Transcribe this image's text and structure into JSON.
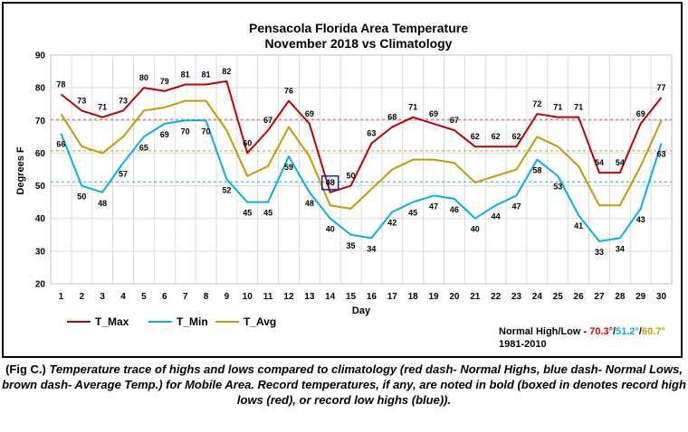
{
  "chart_data": {
    "type": "line",
    "title": "Pensacola Florida Area Temperature",
    "subtitle": "November 2018 vs Climatology",
    "xlabel": "Day",
    "ylabel": "Degrees F",
    "ylim": [
      20,
      90
    ],
    "yticks": [
      20,
      30,
      40,
      50,
      60,
      70,
      80,
      90
    ],
    "grid": true,
    "legend_position": "bottom-left",
    "x": [
      1,
      2,
      3,
      4,
      5,
      6,
      7,
      8,
      9,
      10,
      11,
      12,
      13,
      14,
      15,
      16,
      17,
      18,
      19,
      20,
      21,
      22,
      23,
      24,
      25,
      26,
      27,
      28,
      29,
      30
    ],
    "series": [
      {
        "name": "T_Max",
        "color": "#c00000",
        "values": [
          78,
          73,
          71,
          73,
          80,
          79,
          81,
          81,
          82,
          60,
          67,
          76,
          69,
          48,
          50,
          63,
          68,
          71,
          69,
          67,
          62,
          62,
          62,
          72,
          71,
          71,
          54,
          54,
          69,
          77
        ],
        "labels": [
          "78",
          "73",
          "71",
          "73",
          "80",
          "79",
          "81",
          "81",
          "82",
          "60",
          "67",
          "76",
          "69",
          "48",
          "50",
          "63",
          "68",
          "71",
          "69",
          "67",
          "62",
          "62",
          "62",
          "72",
          "71",
          "71",
          "54",
          "54",
          "69",
          "77"
        ]
      },
      {
        "name": "T_Min",
        "color": "#00b0f0",
        "values": [
          66,
          50,
          48,
          57,
          65,
          69,
          70,
          70,
          52,
          45,
          45,
          59,
          48,
          40,
          35,
          34,
          42,
          45,
          47,
          46,
          40,
          44,
          47,
          58,
          53,
          41,
          33,
          34,
          43,
          63
        ],
        "labels": [
          "66",
          "50",
          "48",
          "57",
          "65",
          "69",
          "70",
          "70",
          "52",
          "45",
          "45",
          "59",
          "48",
          "40",
          "35",
          "34",
          "42",
          "45",
          "47",
          "46",
          "40",
          "44",
          "47",
          "58",
          "53",
          "41",
          "33",
          "34",
          "43",
          "63"
        ]
      },
      {
        "name": "T_Avg",
        "color": "#c49a00",
        "values": [
          72,
          62,
          60,
          65,
          73,
          74,
          76,
          76,
          67,
          53,
          56,
          68,
          59,
          44,
          43,
          49,
          55,
          58,
          58,
          57,
          51,
          53,
          55,
          65,
          62,
          56,
          44,
          44,
          56,
          70
        ]
      }
    ],
    "normals": [
      {
        "name": "Normal High",
        "value": 70.3,
        "color": "#e05050"
      },
      {
        "name": "Normal Low",
        "value": 51.2,
        "color": "#00b0f0"
      },
      {
        "name": "Average Temp.",
        "value": 60.7,
        "color": "#c49a00"
      }
    ],
    "record_box_day": 14,
    "normals_text": {
      "prefix": "Normal High/Low - ",
      "high": "70.3°",
      "sep1": "/",
      "low": "51.2°",
      "sep2": "/",
      "avg": "60.7°",
      "period": "1981-2010"
    }
  },
  "caption": {
    "lead": "(Fig C.)",
    "body": "Temperature trace of highs and lows compared to climatology (red dash- Normal Highs, blue dash- Normal Lows, brown dash- Average Temp.) for Mobile Area. Record temperatures, if any, are noted in bold (boxed in denotes record high lows (red), or record low highs (blue))."
  }
}
